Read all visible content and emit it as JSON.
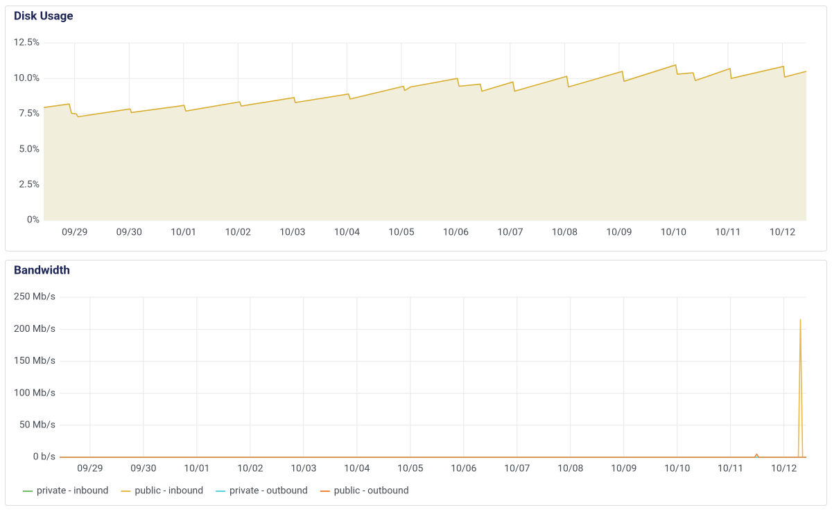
{
  "chart_data": [
    {
      "type": "line",
      "title": "Disk Usage",
      "area": true,
      "grid": true,
      "color": "#d9ae2e",
      "fill": "#f1efdc",
      "x": [
        -0.57,
        -0.1,
        -0.06,
        0.03,
        0.06,
        1.02,
        1.04,
        2.01,
        2.04,
        3.03,
        3.06,
        4.03,
        4.05,
        5.03,
        5.06,
        6.04,
        6.06,
        6.17,
        7.03,
        7.06,
        7.45,
        7.48,
        8.05,
        8.08,
        9.04,
        9.07,
        10.06,
        10.09,
        11.04,
        11.07,
        11.36,
        11.4,
        12.04,
        12.06,
        13.02,
        13.04,
        13.44
      ],
      "values": [
        7.95,
        8.2,
        7.55,
        7.5,
        7.3,
        7.85,
        7.6,
        8.1,
        7.7,
        8.35,
        8.05,
        8.65,
        8.3,
        8.9,
        8.55,
        9.45,
        9.15,
        9.4,
        10.0,
        9.45,
        9.6,
        9.1,
        9.75,
        9.1,
        10.15,
        9.4,
        10.5,
        9.8,
        10.95,
        10.3,
        10.4,
        9.85,
        10.7,
        10.0,
        10.85,
        10.1,
        10.5
      ],
      "xlim": [
        -0.57,
        13.44
      ],
      "xticks": [
        {
          "value": 0,
          "label": "09/29"
        },
        {
          "value": 1,
          "label": "09/30"
        },
        {
          "value": 2,
          "label": "10/01"
        },
        {
          "value": 3,
          "label": "10/02"
        },
        {
          "value": 4,
          "label": "10/03"
        },
        {
          "value": 5,
          "label": "10/04"
        },
        {
          "value": 6,
          "label": "10/05"
        },
        {
          "value": 7,
          "label": "10/06"
        },
        {
          "value": 8,
          "label": "10/07"
        },
        {
          "value": 9,
          "label": "10/08"
        },
        {
          "value": 10,
          "label": "10/09"
        },
        {
          "value": 11,
          "label": "10/10"
        },
        {
          "value": 12,
          "label": "10/11"
        },
        {
          "value": 13,
          "label": "10/12"
        }
      ],
      "ylim": [
        0,
        12.5
      ],
      "yticks": [
        {
          "value": 0,
          "label": "0%"
        },
        {
          "value": 2.5,
          "label": "2.5%"
        },
        {
          "value": 5,
          "label": "5.0%"
        },
        {
          "value": 7.5,
          "label": "7.5%"
        },
        {
          "value": 10,
          "label": "10.0%"
        },
        {
          "value": 12.5,
          "label": "12.5%"
        }
      ]
    },
    {
      "type": "line",
      "title": "Bandwidth",
      "area": false,
      "grid": true,
      "legend": "bottom",
      "x": [
        -0.57,
        12.45,
        12.49,
        12.53,
        13.27,
        13.31,
        13.35,
        13.42
      ],
      "series": [
        {
          "name": "private - inbound",
          "color": "#73bf69",
          "values": [
            0,
            0,
            0,
            0,
            0,
            0,
            0,
            0
          ]
        },
        {
          "name": "public - inbound",
          "color": "#e8b84a",
          "values": [
            0,
            0,
            0,
            0,
            0,
            215,
            0,
            0
          ]
        },
        {
          "name": "private - outbound",
          "color": "#5ad3e6",
          "values": [
            0,
            0,
            0,
            0,
            0,
            0,
            0,
            0
          ]
        },
        {
          "name": "public - outbound",
          "color": "#f2853a",
          "values": [
            0,
            0,
            5,
            0,
            0,
            0,
            0,
            0
          ]
        }
      ],
      "xlim": [
        -0.57,
        13.42
      ],
      "xticks": [
        {
          "value": 0,
          "label": "09/29"
        },
        {
          "value": 1,
          "label": "09/30"
        },
        {
          "value": 2,
          "label": "10/01"
        },
        {
          "value": 3,
          "label": "10/02"
        },
        {
          "value": 4,
          "label": "10/03"
        },
        {
          "value": 5,
          "label": "10/04"
        },
        {
          "value": 6,
          "label": "10/05"
        },
        {
          "value": 7,
          "label": "10/06"
        },
        {
          "value": 8,
          "label": "10/07"
        },
        {
          "value": 9,
          "label": "10/08"
        },
        {
          "value": 10,
          "label": "10/09"
        },
        {
          "value": 11,
          "label": "10/10"
        },
        {
          "value": 12,
          "label": "10/11"
        },
        {
          "value": 13,
          "label": "10/12"
        }
      ],
      "ylim": [
        0,
        250
      ],
      "yticks": [
        {
          "value": 0,
          "label": "0 b/s"
        },
        {
          "value": 50,
          "label": "50 Mb/s"
        },
        {
          "value": 100,
          "label": "100 Mb/s"
        },
        {
          "value": 150,
          "label": "150 Mb/s"
        },
        {
          "value": 200,
          "label": "200 Mb/s"
        },
        {
          "value": 250,
          "label": "250 Mb/s"
        }
      ]
    }
  ]
}
